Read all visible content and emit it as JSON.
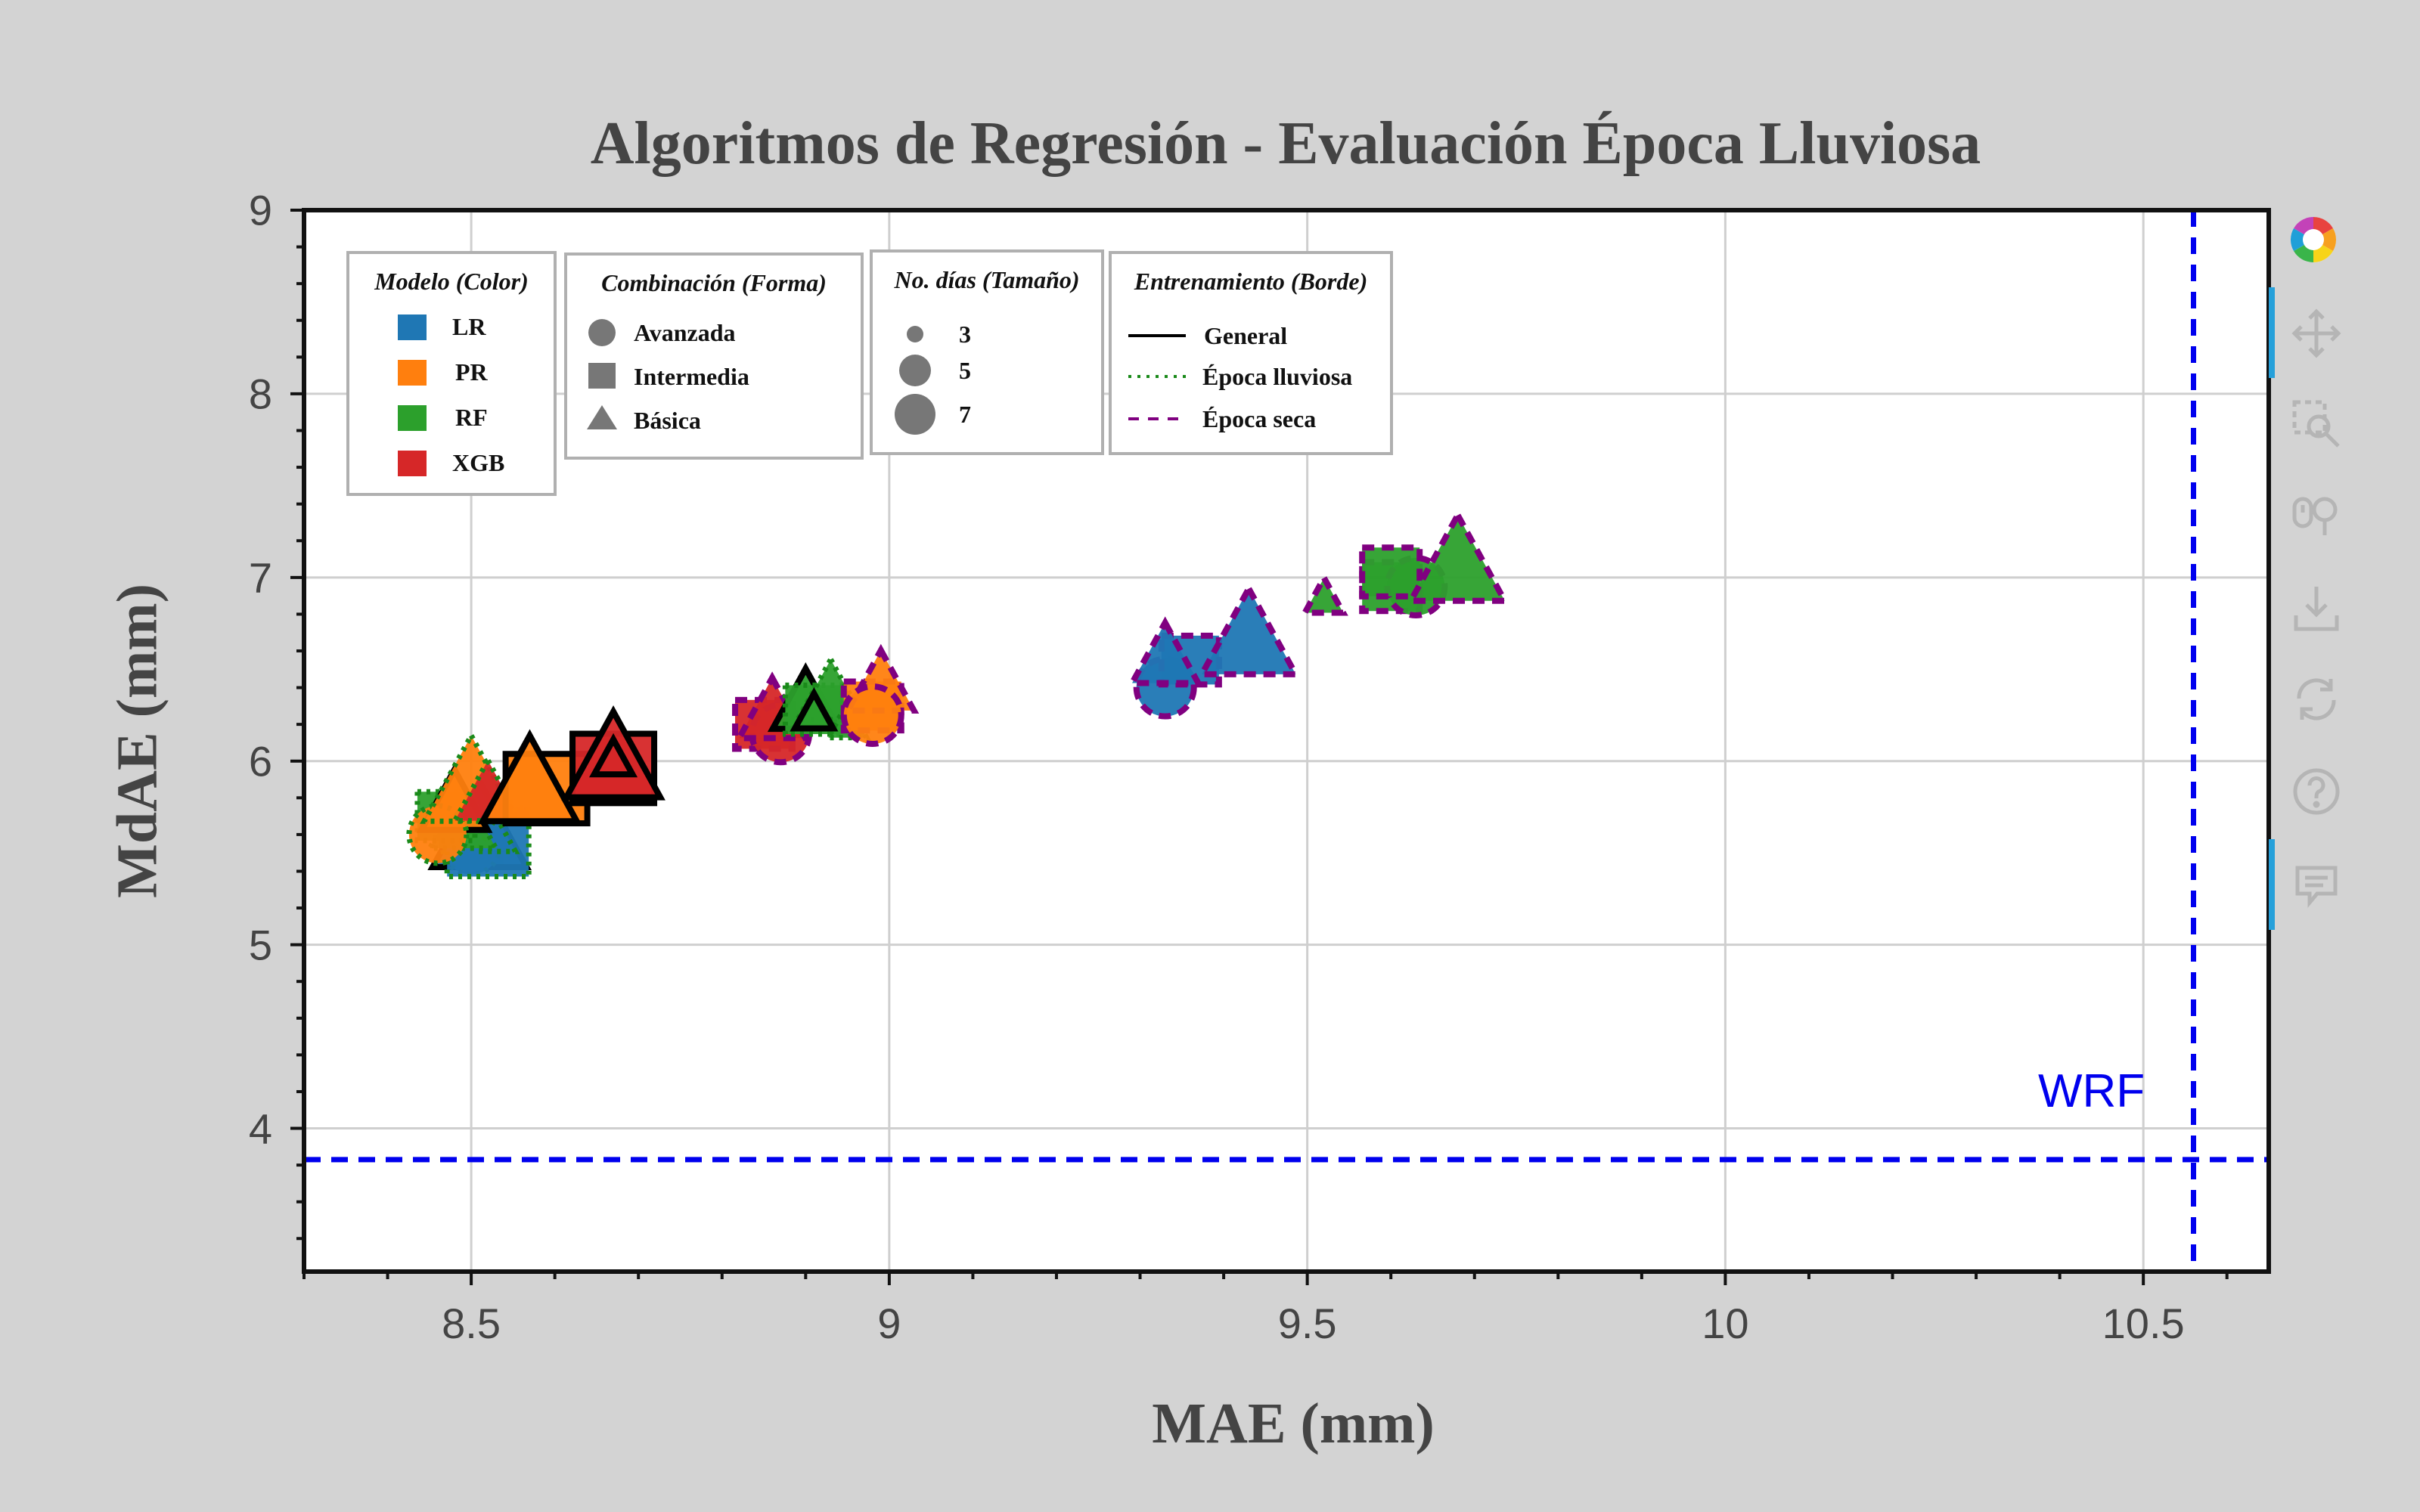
{
  "chart_data": {
    "type": "scatter",
    "title": "Algoritmos de Regresión - Evaluación Época Lluviosa",
    "xlabel": "MAE (mm)",
    "ylabel": "MdAE (mm)",
    "xlim": [
      8.3,
      10.65
    ],
    "ylim": [
      3.22,
      9.0
    ],
    "x_ticks": [
      "8.5",
      "9",
      "9.5",
      "10",
      "10.5"
    ],
    "y_ticks": [
      "4",
      "5",
      "6",
      "7",
      "8",
      "9"
    ],
    "grid": true,
    "reference_lines": {
      "label": "WRF",
      "x": 10.56,
      "y": 3.83
    },
    "legends": [
      {
        "title": "Modelo (Color)",
        "items": [
          {
            "label": "LR",
            "color": "#1f77b4"
          },
          {
            "label": "PR",
            "color": "#ff7f0e"
          },
          {
            "label": "RF",
            "color": "#2ca02c"
          },
          {
            "label": "XGB",
            "color": "#d62728"
          }
        ]
      },
      {
        "title": "Combinación (Forma)",
        "items": [
          {
            "label": "Avanzada",
            "shape": "circle"
          },
          {
            "label": "Intermedia",
            "shape": "square"
          },
          {
            "label": "Básica",
            "shape": "triangle"
          }
        ]
      },
      {
        "title": "No. días (Tamaño)",
        "items": [
          {
            "label": "3",
            "size": 3
          },
          {
            "label": "5",
            "size": 5
          },
          {
            "label": "7",
            "size": 7
          }
        ]
      },
      {
        "title": "Entrenamiento (Borde)",
        "items": [
          {
            "label": "General",
            "border": "solid"
          },
          {
            "label": "Época lluviosa",
            "border": "dotted"
          },
          {
            "label": "Época seca",
            "border": "dashed"
          }
        ]
      }
    ],
    "points": [
      {
        "model": "LR",
        "shape": "circle",
        "days": 3,
        "training": "General",
        "x": 8.49,
        "y": 5.55
      },
      {
        "model": "LR",
        "shape": "square",
        "days": 5,
        "training": "General",
        "x": 8.5,
        "y": 5.57
      },
      {
        "model": "LR",
        "shape": "triangle",
        "days": 7,
        "training": "General",
        "x": 8.51,
        "y": 5.6
      },
      {
        "model": "LR",
        "shape": "circle",
        "days": 5,
        "training": "Época lluviosa",
        "x": 8.5,
        "y": 5.54
      },
      {
        "model": "LR",
        "shape": "square",
        "days": 7,
        "training": "Época lluviosa",
        "x": 8.52,
        "y": 5.56
      },
      {
        "model": "LR",
        "shape": "triangle",
        "days": 3,
        "training": "Época lluviosa",
        "x": 8.53,
        "y": 5.58
      },
      {
        "model": "RF",
        "shape": "triangle",
        "days": 5,
        "training": "Época lluviosa",
        "x": 8.49,
        "y": 5.65
      },
      {
        "model": "RF",
        "shape": "square",
        "days": 5,
        "training": "Época lluviosa",
        "x": 8.47,
        "y": 5.7
      },
      {
        "model": "PR",
        "shape": "triangle",
        "days": 5,
        "training": "General",
        "x": 8.48,
        "y": 5.75
      },
      {
        "model": "PR",
        "shape": "circle",
        "days": 5,
        "training": "Época lluviosa",
        "x": 8.46,
        "y": 5.6
      },
      {
        "model": "PR",
        "shape": "triangle",
        "days": 7,
        "training": "Época lluviosa",
        "x": 8.5,
        "y": 5.85
      },
      {
        "model": "XGB",
        "shape": "triangle",
        "days": 5,
        "training": "Época lluviosa",
        "x": 8.52,
        "y": 5.8
      },
      {
        "model": "PR",
        "shape": "square",
        "days": 7,
        "training": "General",
        "x": 8.59,
        "y": 5.85
      },
      {
        "model": "PR",
        "shape": "triangle",
        "days": 7,
        "training": "General",
        "x": 8.57,
        "y": 5.85
      },
      {
        "model": "XGB",
        "shape": "square",
        "days": 7,
        "training": "General",
        "x": 8.67,
        "y": 5.96
      },
      {
        "model": "XGB",
        "shape": "triangle",
        "days": 7,
        "training": "General",
        "x": 8.67,
        "y": 5.98
      },
      {
        "model": "XGB",
        "shape": "triangle",
        "days": 3,
        "training": "General",
        "x": 8.67,
        "y": 6.0
      },
      {
        "model": "XGB",
        "shape": "square",
        "days": 5,
        "training": "Época seca",
        "x": 8.85,
        "y": 6.2
      },
      {
        "model": "XGB",
        "shape": "circle",
        "days": 5,
        "training": "Época seca",
        "x": 8.87,
        "y": 6.15
      },
      {
        "model": "XGB",
        "shape": "triangle",
        "days": 5,
        "training": "Época seca",
        "x": 8.86,
        "y": 6.25
      },
      {
        "model": "RF",
        "shape": "triangle",
        "days": 5,
        "training": "General",
        "x": 8.9,
        "y": 6.3
      },
      {
        "model": "RF",
        "shape": "square",
        "days": 5,
        "training": "Época lluviosa",
        "x": 8.91,
        "y": 6.28
      },
      {
        "model": "RF",
        "shape": "triangle",
        "days": 5,
        "training": "Época lluviosa",
        "x": 8.93,
        "y": 6.35
      },
      {
        "model": "RF",
        "shape": "triangle",
        "days": 3,
        "training": "Época lluviosa",
        "x": 8.95,
        "y": 6.2
      },
      {
        "model": "RF",
        "shape": "triangle",
        "days": 3,
        "training": "General",
        "x": 8.91,
        "y": 6.25
      },
      {
        "model": "PR",
        "shape": "square",
        "days": 5,
        "training": "Época seca",
        "x": 8.98,
        "y": 6.3
      },
      {
        "model": "PR",
        "shape": "triangle",
        "days": 5,
        "training": "Época seca",
        "x": 8.99,
        "y": 6.4
      },
      {
        "model": "PR",
        "shape": "circle",
        "days": 5,
        "training": "Época seca",
        "x": 8.98,
        "y": 6.25
      },
      {
        "model": "LR",
        "shape": "circle",
        "days": 5,
        "training": "Época seca",
        "x": 9.33,
        "y": 6.4
      },
      {
        "model": "LR",
        "shape": "square",
        "days": 5,
        "training": "Época seca",
        "x": 9.36,
        "y": 6.55
      },
      {
        "model": "LR",
        "shape": "triangle",
        "days": 5,
        "training": "Época seca",
        "x": 9.33,
        "y": 6.55
      },
      {
        "model": "LR",
        "shape": "triangle",
        "days": 7,
        "training": "Época seca",
        "x": 9.43,
        "y": 6.65
      },
      {
        "model": "RF",
        "shape": "triangle",
        "days": 3,
        "training": "Época seca",
        "x": 9.52,
        "y": 6.88
      },
      {
        "model": "RF",
        "shape": "square",
        "days": 5,
        "training": "Época seca",
        "x": 9.6,
        "y": 6.95
      },
      {
        "model": "RF",
        "shape": "circle",
        "days": 5,
        "training": "Época seca",
        "x": 9.63,
        "y": 6.95
      },
      {
        "model": "RF",
        "shape": "square",
        "days": 5,
        "training": "Época seca",
        "x": 9.6,
        "y": 7.03
      },
      {
        "model": "RF",
        "shape": "triangle",
        "days": 7,
        "training": "Época seca",
        "x": 9.68,
        "y": 7.05
      }
    ]
  },
  "annotation": {
    "wrf": "WRF"
  },
  "toolbar": {
    "items": [
      "logo-icon",
      "pan-icon",
      "box-zoom-icon",
      "wheel-zoom-icon",
      "save-icon",
      "reset-icon",
      "help-icon",
      "comment-icon"
    ],
    "accent": "#26a0da"
  }
}
